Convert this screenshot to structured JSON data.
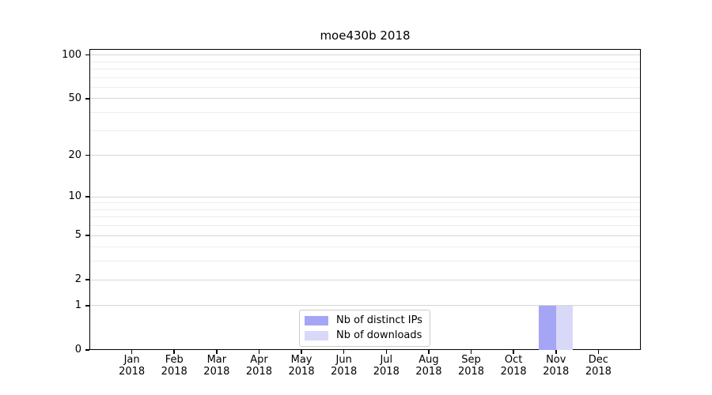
{
  "chart_data": {
    "type": "bar",
    "title": "moe430b 2018",
    "categories": [
      "Jan 2018",
      "Feb 2018",
      "Mar 2018",
      "Apr 2018",
      "May 2018",
      "Jun 2018",
      "Jul 2018",
      "Aug 2018",
      "Sep 2018",
      "Oct 2018",
      "Nov 2018",
      "Dec 2018"
    ],
    "series": [
      {
        "name": "Nb of distinct IPs",
        "color": "#a5a5f5",
        "values": [
          0,
          0,
          0,
          0,
          0,
          0,
          0,
          0,
          0,
          0,
          1,
          0
        ]
      },
      {
        "name": "Nb of downloads",
        "color": "#d8d8f9",
        "values": [
          0,
          0,
          0,
          0,
          0,
          0,
          0,
          0,
          0,
          0,
          1,
          0
        ]
      }
    ],
    "xlabel": "",
    "ylabel": "",
    "yscale": "log1p",
    "ylim": [
      0,
      110
    ],
    "y_major_ticks": [
      0,
      1,
      2,
      5,
      10,
      20,
      50,
      100
    ],
    "y_minor_ticks": [
      3,
      4,
      6,
      7,
      8,
      9,
      30,
      40,
      60,
      70,
      80,
      90
    ],
    "grid": "horizontal-on",
    "legend_position": "bottom-center"
  },
  "colors": {
    "spine": "#000000",
    "major_grid": "#d7d7d7",
    "minor_grid": "#ededed",
    "legend_border": "#cccccc",
    "background": "#ffffff",
    "text": "#000000"
  }
}
